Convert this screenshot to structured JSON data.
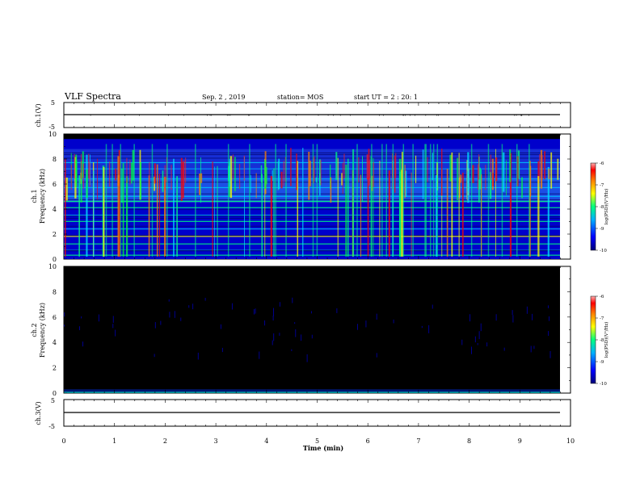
{
  "header": {
    "title": "VLF Spectra",
    "date": "Sep. 2 , 2019",
    "station": "station= MOS",
    "start": "start  UT =   2 : 20: 1"
  },
  "chart_data": [
    {
      "type": "line",
      "name": "ch1-waveform",
      "ylabel": "ch.1(V)",
      "yticks": [
        "5",
        "-5"
      ],
      "ylim": [
        -5,
        5
      ],
      "xlim": [
        0,
        10
      ],
      "value": 0
    },
    {
      "type": "heatmap",
      "name": "ch1-spectrogram",
      "ylabel": "ch.1 Frequency (kHz)",
      "ylabel_line1": "ch.1",
      "ylabel_line2": "Frequency (kHz)",
      "yticks": [
        "0",
        "2",
        "4",
        "6",
        "8",
        "10"
      ],
      "ylim": [
        0,
        10
      ],
      "xlim": [
        0,
        10
      ],
      "colorbar": {
        "label": "log(PSD)(V²/Hz)",
        "ticks": [
          "-6",
          "-7",
          "-8",
          "-9",
          "-10"
        ],
        "range": [
          -10,
          -6
        ]
      }
    },
    {
      "type": "heatmap",
      "name": "ch2-spectrogram",
      "ylabel": "ch.2 Frequency (kHz)",
      "ylabel_line1": "ch.2",
      "ylabel_line2": "Frequency (kHz)",
      "yticks": [
        "0",
        "2",
        "4",
        "6",
        "8",
        "10"
      ],
      "ylim": [
        0,
        10
      ],
      "xlim": [
        0,
        10
      ],
      "colorbar": {
        "label": "log(PSD)(V²/Hz)",
        "ticks": [
          "-6",
          "-7",
          "-8",
          "-9",
          "-10"
        ],
        "range": [
          -10,
          -6
        ]
      }
    },
    {
      "type": "line",
      "name": "ch3-waveform",
      "ylabel": "ch.3(V)",
      "yticks": [
        "5",
        "-5"
      ],
      "ylim": [
        -5,
        5
      ],
      "xlim": [
        0,
        10
      ],
      "value": 0
    }
  ],
  "xaxis": {
    "label": "Time  (min)",
    "ticks": [
      "0",
      "1",
      "2",
      "3",
      "4",
      "5",
      "6",
      "7",
      "8",
      "9",
      "10"
    ]
  },
  "colors": {
    "background": "#000000",
    "colormap": [
      "#00007a",
      "#0000ff",
      "#00b0ff",
      "#00ff80",
      "#ffff00",
      "#ff8000",
      "#ff0000",
      "#ffb0b0"
    ]
  }
}
